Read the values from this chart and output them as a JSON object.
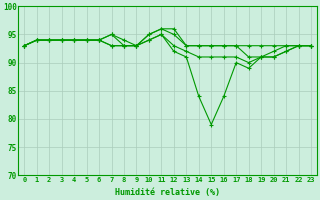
{
  "title": "",
  "xlabel": "Humidité relative (%)",
  "ylabel": "",
  "background_color": "#cceedd",
  "grid_color": "#aaccbb",
  "line_color": "#009900",
  "marker": "+",
  "xlim": [
    -0.5,
    23.5
  ],
  "ylim": [
    70,
    100
  ],
  "yticks": [
    70,
    75,
    80,
    85,
    90,
    95,
    100
  ],
  "xticks": [
    0,
    1,
    2,
    3,
    4,
    5,
    6,
    7,
    8,
    9,
    10,
    11,
    12,
    13,
    14,
    15,
    16,
    17,
    18,
    19,
    20,
    21,
    22,
    23
  ],
  "series": [
    [
      93,
      94,
      94,
      94,
      94,
      94,
      94,
      95,
      93,
      93,
      95,
      96,
      96,
      93,
      93,
      93,
      93,
      93,
      93,
      93,
      93,
      93,
      93,
      93
    ],
    [
      93,
      94,
      94,
      94,
      94,
      94,
      94,
      95,
      94,
      93,
      95,
      96,
      95,
      93,
      93,
      93,
      93,
      93,
      91,
      91,
      92,
      93,
      93,
      93
    ],
    [
      93,
      94,
      94,
      94,
      94,
      94,
      94,
      93,
      93,
      93,
      94,
      95,
      93,
      92,
      91,
      91,
      91,
      91,
      90,
      91,
      91,
      92,
      93,
      93
    ],
    [
      93,
      94,
      94,
      94,
      94,
      94,
      94,
      93,
      93,
      93,
      94,
      95,
      92,
      91,
      84,
      79,
      84,
      90,
      89,
      91,
      91,
      92,
      93,
      93
    ]
  ],
  "figwidth": 3.2,
  "figheight": 2.0,
  "dpi": 100,
  "xlabel_fontsize": 6,
  "tick_fontsize": 5,
  "tick_color": "#009900",
  "linewidth": 0.8,
  "markersize": 3,
  "markeredgewidth": 0.8
}
